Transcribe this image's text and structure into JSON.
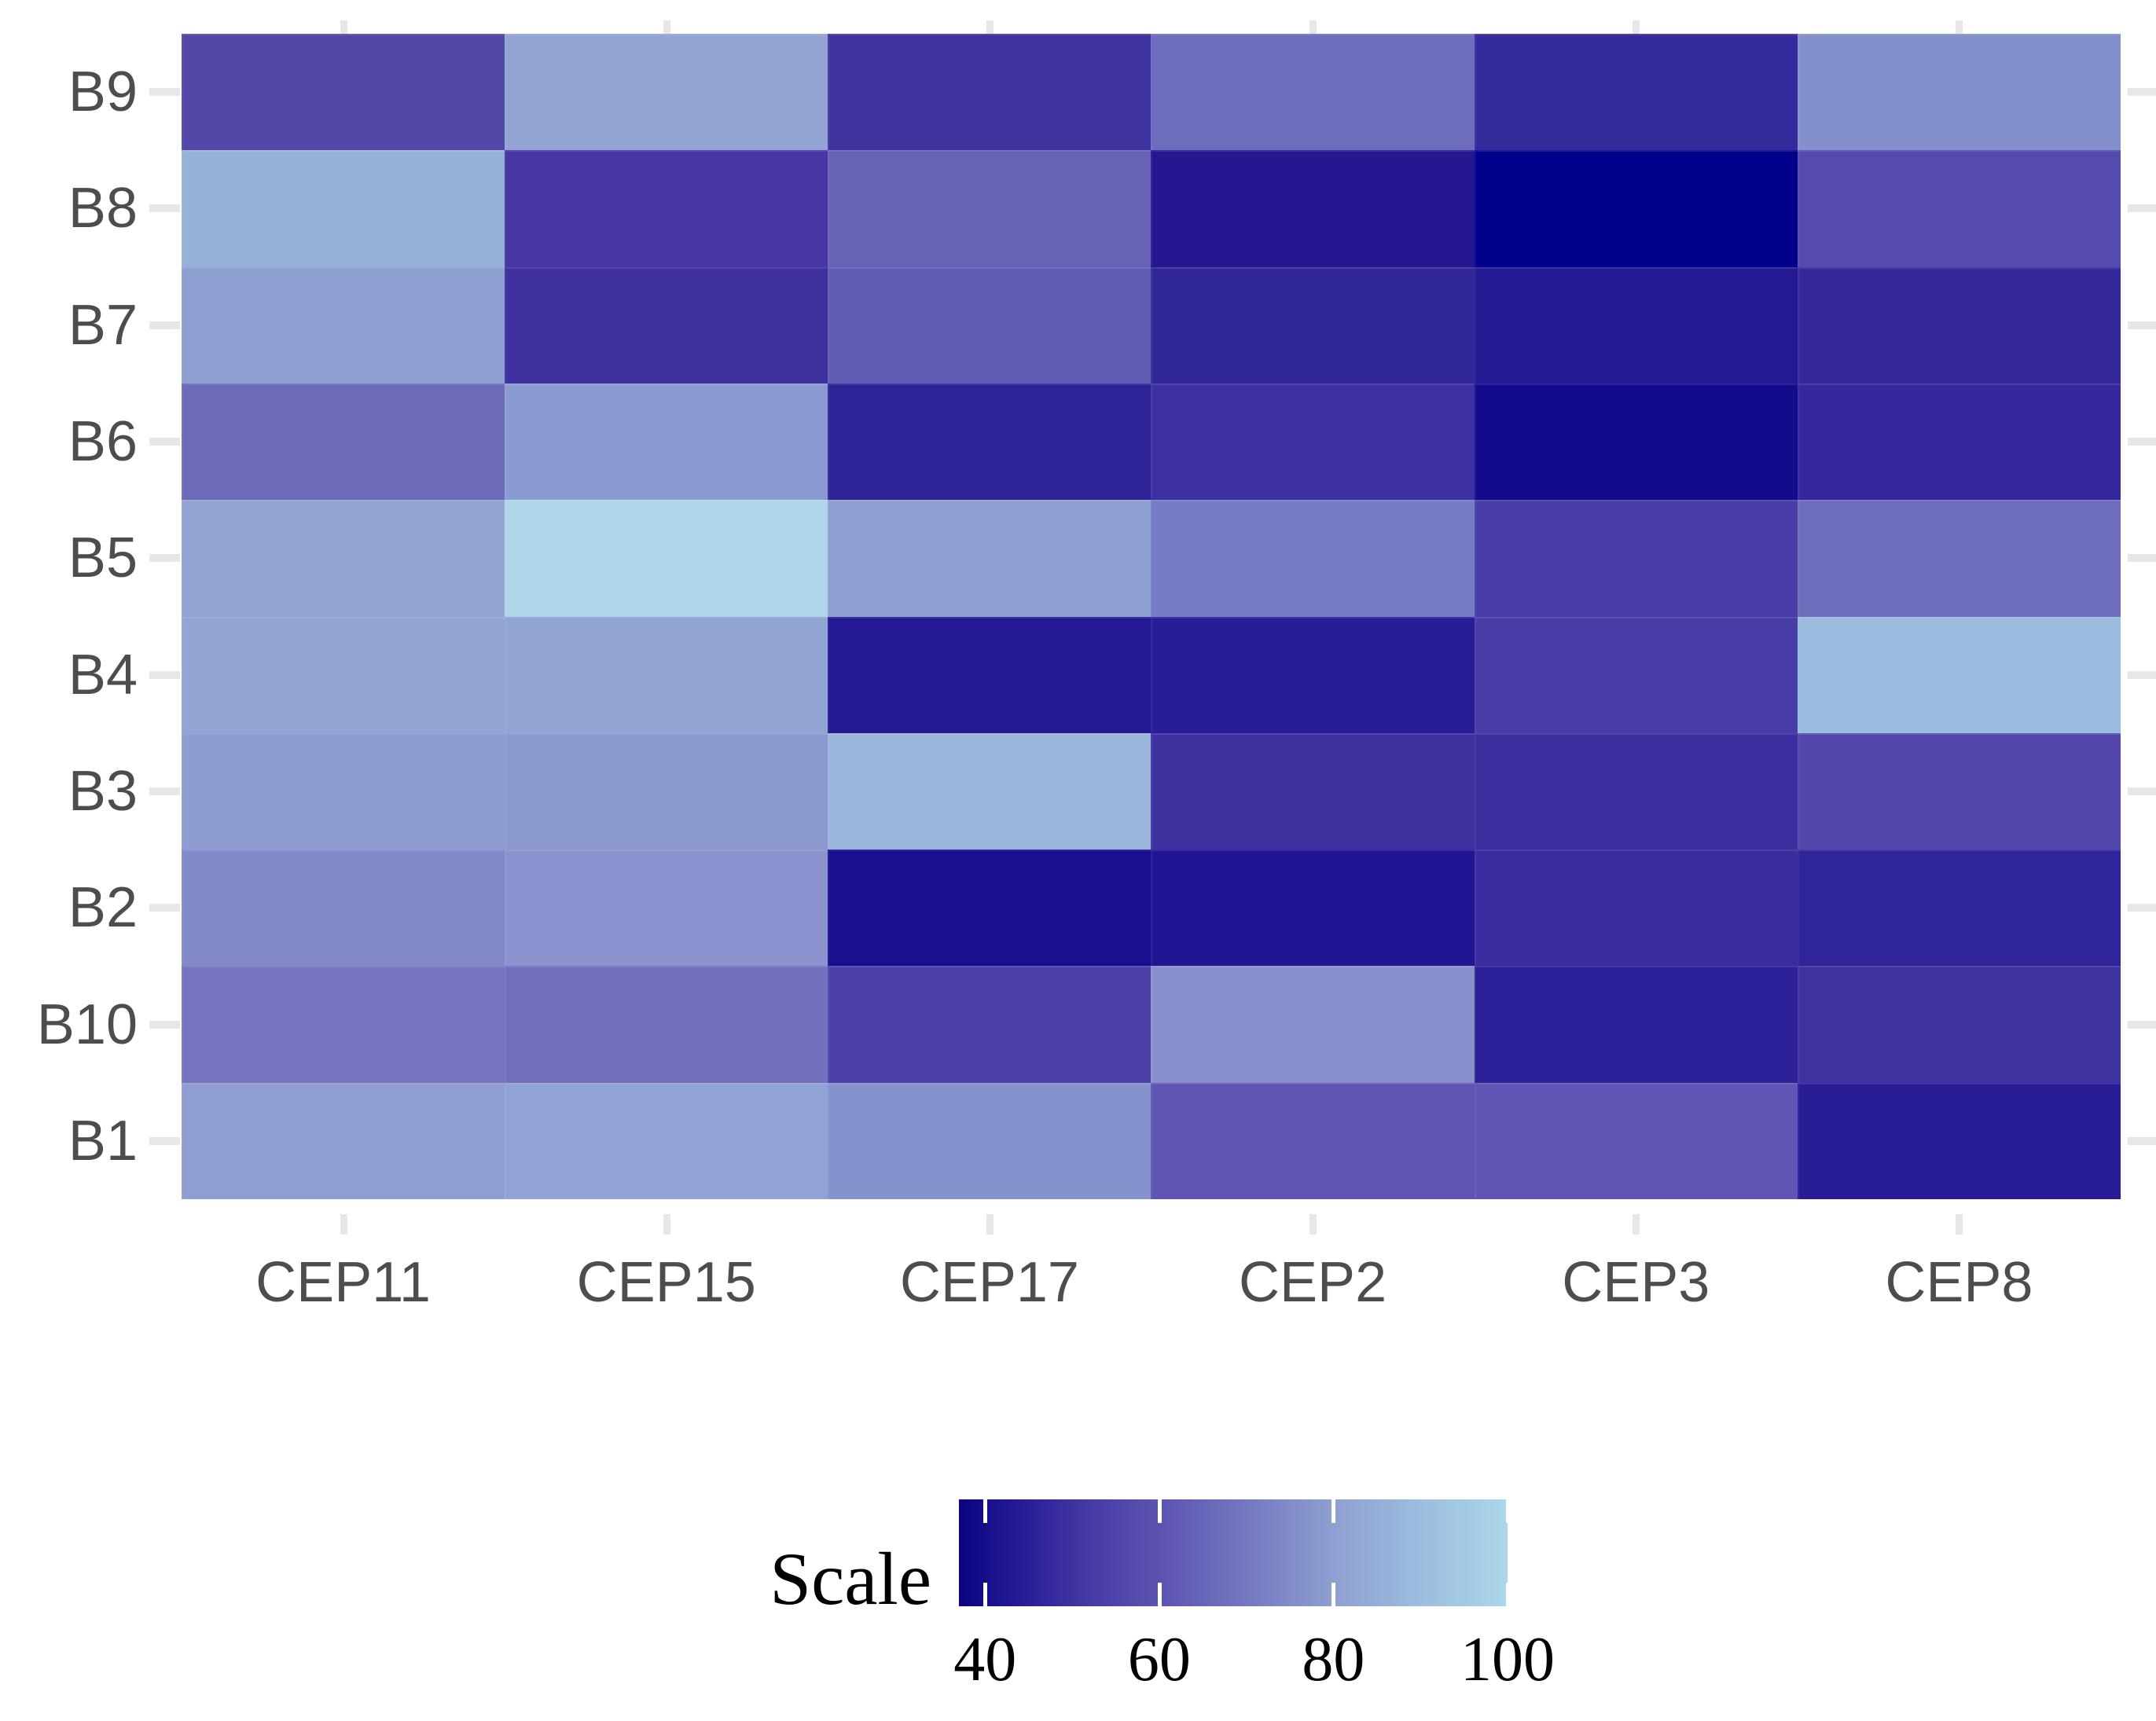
{
  "chart_data": {
    "type": "heatmap",
    "title": "",
    "x_categories": [
      "CEP11",
      "CEP15",
      "CEP17",
      "CEP2",
      "CEP3",
      "CEP8"
    ],
    "y_categories_top_to_bottom": [
      "B9",
      "B8",
      "B7",
      "B6",
      "B5",
      "B4",
      "B3",
      "B2",
      "B10",
      "B1"
    ],
    "legend": {
      "title": "Scale",
      "tick_labels": [
        "40",
        "60",
        "80",
        "100"
      ],
      "tick_values": [
        40,
        60,
        80,
        100
      ],
      "domain": [
        37,
        100
      ],
      "color_low": "#0a0382",
      "color_high": "#abd7e8",
      "position": "bottom"
    },
    "grid": "off",
    "axis_tick_color": "#e7e7e7",
    "axis_label_color": "#4d4d4d",
    "series": [
      {
        "name": "B9",
        "values": [
          57,
          82,
          49,
          68,
          47,
          76
        ],
        "colors": [
          "#5148a8",
          "#92a3d4",
          "#3f33a0",
          "#6e6cbc",
          "#352a9c",
          "#8490cb"
        ]
      },
      {
        "name": "B8",
        "values": [
          85,
          51,
          65,
          42,
          38,
          58
        ],
        "colors": [
          "#97b1d8",
          "#4736a3",
          "#6663b7",
          "#261690",
          "#00008b",
          "#554aad"
        ]
      },
      {
        "name": "B7",
        "values": [
          79,
          48,
          63,
          46,
          43,
          46
        ],
        "colors": [
          "#8d9ed1",
          "#3e309f",
          "#605cb4",
          "#322799",
          "#241a94",
          "#35289b"
        ]
      },
      {
        "name": "B6",
        "values": [
          67,
          78,
          45,
          48,
          40,
          47
        ],
        "colors": [
          "#6d6aba",
          "#8b9ad0",
          "#2f2398",
          "#3d31a1",
          "#120b8c",
          "#36289c"
        ]
      },
      {
        "name": "B5",
        "values": [
          81,
          100,
          80,
          71,
          53,
          68
        ],
        "colors": [
          "#91a2d3",
          "#aed6e8",
          "#8ea0d1",
          "#767cc4",
          "#483ca6",
          "#6e6cbc"
        ]
      },
      {
        "name": "B4",
        "values": [
          82,
          82,
          43,
          43,
          53,
          88
        ],
        "colors": [
          "#91a6d5",
          "#92a4d4",
          "#251a94",
          "#281d96",
          "#483ca6",
          "#9abade"
        ]
      },
      {
        "name": "B3",
        "values": [
          79,
          78,
          87,
          49,
          48,
          57
        ],
        "colors": [
          "#8d9cd1",
          "#8c99cf",
          "#9bb4da",
          "#3e32a1",
          "#3b2e9f",
          "#5347ab"
        ]
      },
      {
        "name": "B2",
        "values": [
          74,
          77,
          41,
          42,
          47,
          45
        ],
        "colors": [
          "#8289ca",
          "#8a93cd",
          "#1a108f",
          "#201593",
          "#382c9e",
          "#30249b"
        ]
      },
      {
        "name": "B10",
        "values": [
          70,
          69,
          54,
          76,
          45,
          49
        ],
        "colors": [
          "#7673c1",
          "#7370bf",
          "#4c40a8",
          "#8690cc",
          "#2d219a",
          "#3f33a2"
        ]
      },
      {
        "name": "B1",
        "values": [
          80,
          81,
          77,
          61,
          61,
          44
        ],
        "colors": [
          "#8f9dd2",
          "#91a2d4",
          "#8592cd",
          "#5d55b1",
          "#5e56b2",
          "#291d96"
        ]
      }
    ]
  }
}
